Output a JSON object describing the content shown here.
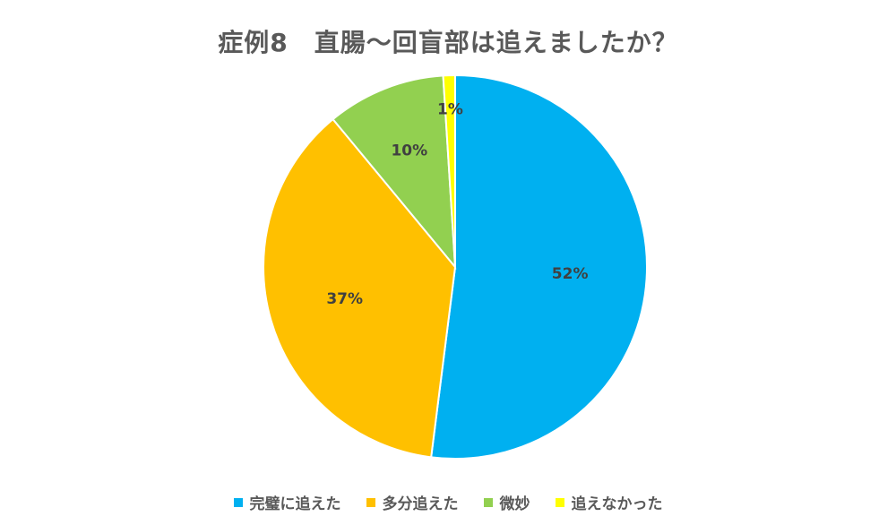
{
  "chart_data": {
    "type": "pie",
    "title": "症例8　直腸〜回盲部は追えましたか？",
    "categories": [
      "完璧に追えた",
      "多分追えた",
      "微妙",
      "追えなかった"
    ],
    "values": [
      52,
      37,
      10,
      1
    ],
    "data_labels": [
      "52%",
      "37%",
      "10%",
      "1%"
    ],
    "colors": [
      "#00B0F0",
      "#FFC000",
      "#92D050",
      "#FFFF00"
    ],
    "start_angle_deg": 0,
    "direction": "clockwise",
    "legend_position": "bottom"
  }
}
